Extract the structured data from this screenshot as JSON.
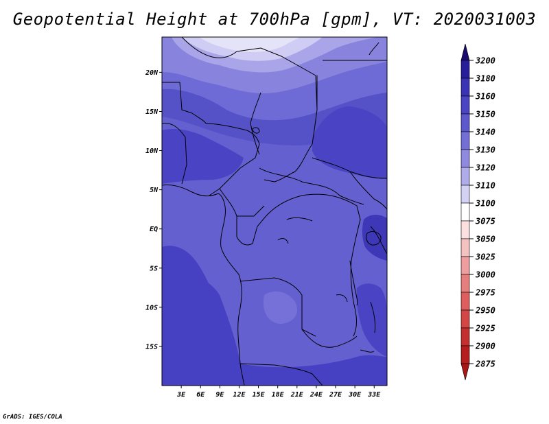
{
  "title": "Geopotential Height at 700hPa [gpm], VT: 2020031003",
  "credit": "GrADS: IGES/COLA",
  "map": {
    "lon_range": [
      0,
      35
    ],
    "lat_range": [
      -20,
      24.5
    ],
    "lat_ticks": [
      {
        "value": 20,
        "label": "20N"
      },
      {
        "value": 15,
        "label": "15N"
      },
      {
        "value": 10,
        "label": "10N"
      },
      {
        "value": 5,
        "label": "5N"
      },
      {
        "value": 0,
        "label": "EQ"
      },
      {
        "value": -5,
        "label": "5S"
      },
      {
        "value": -10,
        "label": "10S"
      },
      {
        "value": -15,
        "label": "15S"
      }
    ],
    "lon_ticks": [
      {
        "value": 3,
        "label": "3E"
      },
      {
        "value": 6,
        "label": "6E"
      },
      {
        "value": 9,
        "label": "9E"
      },
      {
        "value": 12,
        "label": "12E"
      },
      {
        "value": 15,
        "label": "15E"
      },
      {
        "value": 18,
        "label": "18E"
      },
      {
        "value": 21,
        "label": "21E"
      },
      {
        "value": 24,
        "label": "24E"
      },
      {
        "value": 27,
        "label": "27E"
      },
      {
        "value": 30,
        "label": "30E"
      },
      {
        "value": 33,
        "label": "33E"
      }
    ]
  },
  "colorbar": {
    "levels": [
      {
        "label": "3200",
        "color": "#1e0f7a"
      },
      {
        "label": "3180",
        "color": "#2a1f9a"
      },
      {
        "label": "3160",
        "color": "#3a33b4"
      },
      {
        "label": "3150",
        "color": "#4b45c4"
      },
      {
        "label": "3140",
        "color": "#5d59cc"
      },
      {
        "label": "3130",
        "color": "#736fd6"
      },
      {
        "label": "3120",
        "color": "#8f8ae0"
      },
      {
        "label": "3110",
        "color": "#b0acea"
      },
      {
        "label": "3100",
        "color": "#d4d2f4"
      },
      {
        "label": "3075",
        "color": "#ffffff"
      },
      {
        "label": "3050",
        "color": "#fbe0e0"
      },
      {
        "label": "3025",
        "color": "#f5c2c2"
      },
      {
        "label": "3000",
        "color": "#ee9e9e"
      },
      {
        "label": "2975",
        "color": "#e67e7e"
      },
      {
        "label": "2950",
        "color": "#de5e5e"
      },
      {
        "label": "2925",
        "color": "#d24646"
      },
      {
        "label": "2900",
        "color": "#c43030"
      },
      {
        "label": "2875",
        "color": "#b51e1e"
      }
    ],
    "top_arrow_color": "#1a0a6e",
    "bottom_arrow_color": "#a81616"
  }
}
